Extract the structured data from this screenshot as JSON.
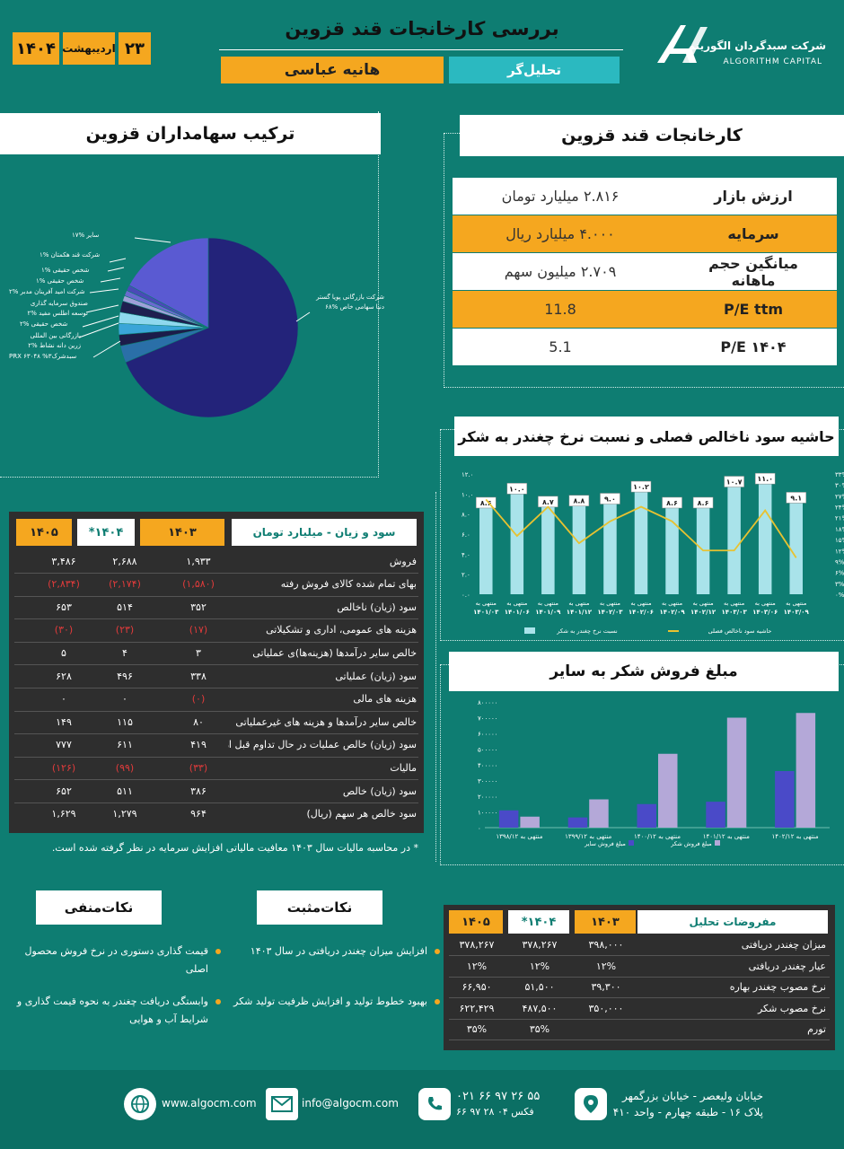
{
  "header": {
    "title": "بررسی کارخانجات قند قزوین",
    "analyst_label": "تحلیل‌گر",
    "analyst_name": "هانیه عباسی",
    "date_day": "۲۳",
    "date_month": "اردیبهشت",
    "date_year": "۱۴۰۴",
    "company_name_fa": "شرکت سبدگردان الگوریتم",
    "company_name_en": "ALGORITHM CAPITAL"
  },
  "company": {
    "title": "کارخانجات قند قزوین",
    "rows": [
      {
        "key": "ارزش بازار",
        "value": "۲.۸۱۶ میلیارد تومان"
      },
      {
        "key": "سرمایه",
        "value": "۴.۰۰۰ میلیارد ریال"
      },
      {
        "key": "میانگین حجم ماهانه",
        "value": "۲.۷۰۹ میلیون سهم"
      },
      {
        "key": "P/E ttm",
        "value": "11.8"
      },
      {
        "key": "P/E ۱۴۰۴",
        "value": "5.1"
      }
    ]
  },
  "shareholders": {
    "title": "ترکیب سهامداران قزوین",
    "labels": [
      {
        "name": "سایر",
        "pct": "%۱۷"
      },
      {
        "name": "شرکت قند هکمتان",
        "pct": "%۱"
      },
      {
        "name": "شخص حقیقی",
        "pct": "%۱"
      },
      {
        "name": "شخص حقیقی",
        "pct": "%۱"
      },
      {
        "name": "شرکت امید آفرینان مدبر",
        "pct": "%۲"
      },
      {
        "name": "صندوق سرمایه گذاری توسعه اطلس مفید",
        "pct": "%۲"
      },
      {
        "name": "شخص حقیقی",
        "pct": "%۲"
      },
      {
        "name": "بازرگانی بین المللی زرین دانه نشاط",
        "pct": "%۲"
      },
      {
        "name": "سبدشرکPRX  ۶۳۰۴۸",
        "pct": "%۳"
      },
      {
        "name": "شرکت بازرگانی پویا گستر دنیا سهامی خاص",
        "pct": "%۶۸"
      }
    ]
  },
  "pie_data": {
    "type": "pie",
    "slices": [
      {
        "name": "شرکت بازرگانی پویا گستر دنیا سهامی خاص",
        "value": 68,
        "color": "#23237a"
      },
      {
        "name": "سبدشرکPRX ۶۳۰۴۸",
        "value": 3,
        "color": "#2a6fa8"
      },
      {
        "name": "بازرگانی بین المللی زرین دانه نشاط",
        "value": 2,
        "color": "#1c1c4a"
      },
      {
        "name": "شخص حقیقی",
        "value": 2,
        "color": "#3aa5d8"
      },
      {
        "name": "صندوق سرمایه گذاری توسعه اطلس مفید",
        "value": 2,
        "color": "#8fd8ee"
      },
      {
        "name": "شرکت امید آفرینان مدبر",
        "value": 2,
        "color": "#1f1f50"
      },
      {
        "name": "شخص حقیقی",
        "value": 1,
        "color": "#9fa0d8"
      },
      {
        "name": "شخص حقیقی",
        "value": 1,
        "color": "#6a6ad0"
      },
      {
        "name": "شرکت قند هکمتان",
        "value": 1,
        "color": "#4a4ab8"
      },
      {
        "name": "سایر",
        "value": 17,
        "color": "#5a5ad2"
      }
    ]
  },
  "profit_table": {
    "title": "سود و زیان - میلیارد تومان",
    "years": [
      "۱۴۰۳",
      "۱۴۰۴*",
      "۱۴۰۵"
    ],
    "rows": [
      {
        "label": "فروش",
        "v": [
          "۱,۹۳۳",
          "۲,۶۸۸",
          "۳,۴۸۶"
        ],
        "neg": false
      },
      {
        "label": "بهای تمام شده کالای فروش رفته",
        "v": [
          "(۱,۵۸۰)",
          "(۲,۱۷۴)",
          "(۲,۸۳۴)"
        ],
        "neg": true
      },
      {
        "label": "سود (زیان) ناخالص",
        "v": [
          "۳۵۲",
          "۵۱۴",
          "۶۵۳"
        ],
        "neg": false
      },
      {
        "label": "هزینه های عمومی، اداری و تشکیلاتی",
        "v": [
          "(۱۷)",
          "(۲۳)",
          "(۳۰)"
        ],
        "neg": true
      },
      {
        "label": "خالص سایر درآمدها (هزینه‌ها)ی عملیاتی",
        "v": [
          "۳",
          "۴",
          "۵"
        ],
        "neg": false
      },
      {
        "label": "سود (زیان) عملیاتی",
        "v": [
          "۳۳۸",
          "۴۹۶",
          "۶۲۸"
        ],
        "neg": false
      },
      {
        "label": "هزینه های مالی",
        "v": [
          "(۰)",
          "۰",
          "۰"
        ],
        "neg": "first"
      },
      {
        "label": "خالص سایر درآمدها و هزینه های غیرعملیاتی",
        "v": [
          "۸۰",
          "۱۱۵",
          "۱۴۹"
        ],
        "neg": false
      },
      {
        "label": "سود (زیان) خالص عملیات در حال تداوم قبل از مالیات",
        "v": [
          "۴۱۹",
          "۶۱۱",
          "۷۷۷"
        ],
        "neg": false
      },
      {
        "label": "مالیات",
        "v": [
          "(۳۳)",
          "(۹۹)",
          "(۱۲۶)"
        ],
        "neg": true
      },
      {
        "label": "سود (زیان) خالص",
        "v": [
          "۳۸۶",
          "۵۱۱",
          "۶۵۲"
        ],
        "neg": false
      },
      {
        "label": "سود خالص هر سهم (ریال)",
        "v": [
          "۹۶۴",
          "۱,۲۷۹",
          "۱,۶۲۹"
        ],
        "neg": false
      }
    ],
    "footnote": "* در محاسبه مالیات سال ۱۴۰۳ معافیت مالیاتی افزایش سرمایه در نظر گرفته شده است."
  },
  "margin_chart": {
    "title": "حاشیه سود ناخالص فصلی و نسبت نرخ چغندر به شکر"
  },
  "sales_chart": {
    "title": "مبلغ فروش شکر به سایر"
  },
  "chart_data": [
    {
      "type": "bar+line",
      "title": "حاشیه سود ناخالص فصلی و نسبت نرخ چغندر به شکر",
      "categories": [
        "منتهی به ۱۴۰۱/۰۳",
        "منتهی به ۱۴۰۱/۰۶",
        "منتهی به ۱۴۰۱/۰۹",
        "منتهی به ۱۴۰۱/۱۲",
        "منتهی به ۱۴۰۲/۰۳",
        "منتهی به ۱۴۰۲/۰۶",
        "منتهی به ۱۴۰۲/۰۹",
        "منتهی به ۱۴۰۲/۱۲",
        "منتهی به ۱۴۰۳/۰۳",
        "منتهی به ۱۴۰۳/۰۶",
        "منتهی به ۱۴۰۳/۰۹"
      ],
      "series": [
        {
          "name": "نسبت نرخ چغندر به شکر",
          "type": "bar",
          "values": [
            8.6,
            10.0,
            8.7,
            8.8,
            9.0,
            10.2,
            8.6,
            8.6,
            10.7,
            11.0,
            9.1
          ],
          "labels": [
            "۸.۶",
            "۱۰.۰",
            "۸.۷",
            "۸.۸",
            "۹.۰",
            "۱۰.۲",
            "۸.۶",
            "۸.۶",
            "۱۰.۷",
            "۱۱.۰",
            "۹.۱"
          ]
        },
        {
          "name": "حاشیه سود ناخالص فصلی",
          "type": "line",
          "values": [
            26,
            16,
            24,
            14,
            20,
            24,
            20,
            12,
            12,
            23,
            10
          ]
        }
      ],
      "y_left": {
        "ticks": [
          "۰.۰",
          "۲.۰",
          "۴.۰",
          "۶.۰",
          "۸.۰",
          "۱۰.۰",
          "۱۲.۰"
        ],
        "min": 0,
        "max": 12
      },
      "y_right": {
        "ticks": [
          "۰%",
          "۳%",
          "۶%",
          "۹%",
          "۱۲%",
          "۱۵%",
          "۱۸%",
          "۲۱%",
          "۲۴%",
          "۲۷%",
          "۳۰%",
          "۳۳%"
        ],
        "min": 0,
        "max": 33
      },
      "legend": [
        "نسبت نرخ چغندر به شکر",
        "حاشیه سود ناخالص فصلی"
      ]
    },
    {
      "type": "bar",
      "title": "مبلغ فروش شکر به سایر",
      "categories": [
        "منتهی به ۱۳۹۸/۱۲",
        "منتهی به ۱۳۹۹/۱۲",
        "منتهی به ۱۴۰۰/۱۲",
        "منتهی به ۱۴۰۱/۱۲",
        "منتهی به ۱۴۰۲/۱۲"
      ],
      "series": [
        {
          "name": "مبلغ فروش سایر",
          "values": [
            110000,
            65000,
            150000,
            165000,
            360000
          ],
          "color": "#4a4ac8"
        },
        {
          "name": "مبلغ فروش شکر",
          "values": [
            70000,
            180000,
            470000,
            700000,
            730000
          ],
          "color": "#b4a8d8"
        }
      ],
      "y_ticks": [
        "۰",
        "۱۰۰۰۰۰",
        "۲۰۰۰۰۰",
        "۳۰۰۰۰۰",
        "۴۰۰۰۰۰",
        "۵۰۰۰۰۰",
        "۶۰۰۰۰۰",
        "۷۰۰۰۰۰",
        "۸۰۰۰۰۰"
      ],
      "ylim": [
        0,
        800000
      ]
    }
  ],
  "negatives": {
    "title": "نکات‌منفی",
    "items": [
      "قیمت گذاری دستوری در نرخ فروش محصول اصلی",
      "وابستگی دریافت چغندر به نحوه قیمت گذاری و شرایط آب و هوایی"
    ]
  },
  "positives": {
    "title": "نکات‌مثبت",
    "items": [
      "افزایش میزان چغندر دریافتی در سال ۱۴۰۳",
      "بهبود خطوط تولید و افزایش ظرفیت تولید شکر"
    ]
  },
  "assumptions": {
    "title": "مفروضات تحلیل",
    "years": [
      "۱۴۰۳",
      "۱۴۰۴*",
      "۱۴۰۵"
    ],
    "rows": [
      {
        "label": "میزان چغندر دریافتی",
        "v": [
          "۳۹۸,۰۰۰",
          "۳۷۸,۲۶۷",
          "۳۷۸,۲۶۷"
        ]
      },
      {
        "label": "عیار چغندر دریافتی",
        "v": [
          "۱۲%",
          "۱۲%",
          "۱۲%"
        ]
      },
      {
        "label": "نرخ مصوب چغندر بهاره",
        "v": [
          "۳۹,۳۰۰",
          "۵۱,۵۰۰",
          "۶۶,۹۵۰"
        ]
      },
      {
        "label": "نرخ مصوب شکر",
        "v": [
          "۳۵۰,۰۰۰",
          "۴۸۷,۵۰۰",
          "۶۲۲,۴۲۹"
        ]
      },
      {
        "label": "تورم",
        "v": [
          "",
          "۳۵%",
          "۳۵%"
        ]
      }
    ]
  },
  "footer": {
    "website": "www.algocm.com",
    "email": "info@algocm.com",
    "phone": "۰۲۱ ۶۶ ۹۷ ۲۶ ۵۵",
    "fax": "۶۶ ۹۷ ۲۸ ۰۴",
    "fax_label": "فکس",
    "address_1": "خیابان ولیعصر - خیابان بزرگمهر",
    "address_2": "پلاک ۱۶ - طبقه چهارم - واحد ۴۱۰"
  },
  "colors": {
    "background": "#0e7d72",
    "orange": "#f5a71f",
    "cyan": "#2bb9c0",
    "bar_light": "#a9e3ea",
    "line_yellow": "#e8c230"
  }
}
